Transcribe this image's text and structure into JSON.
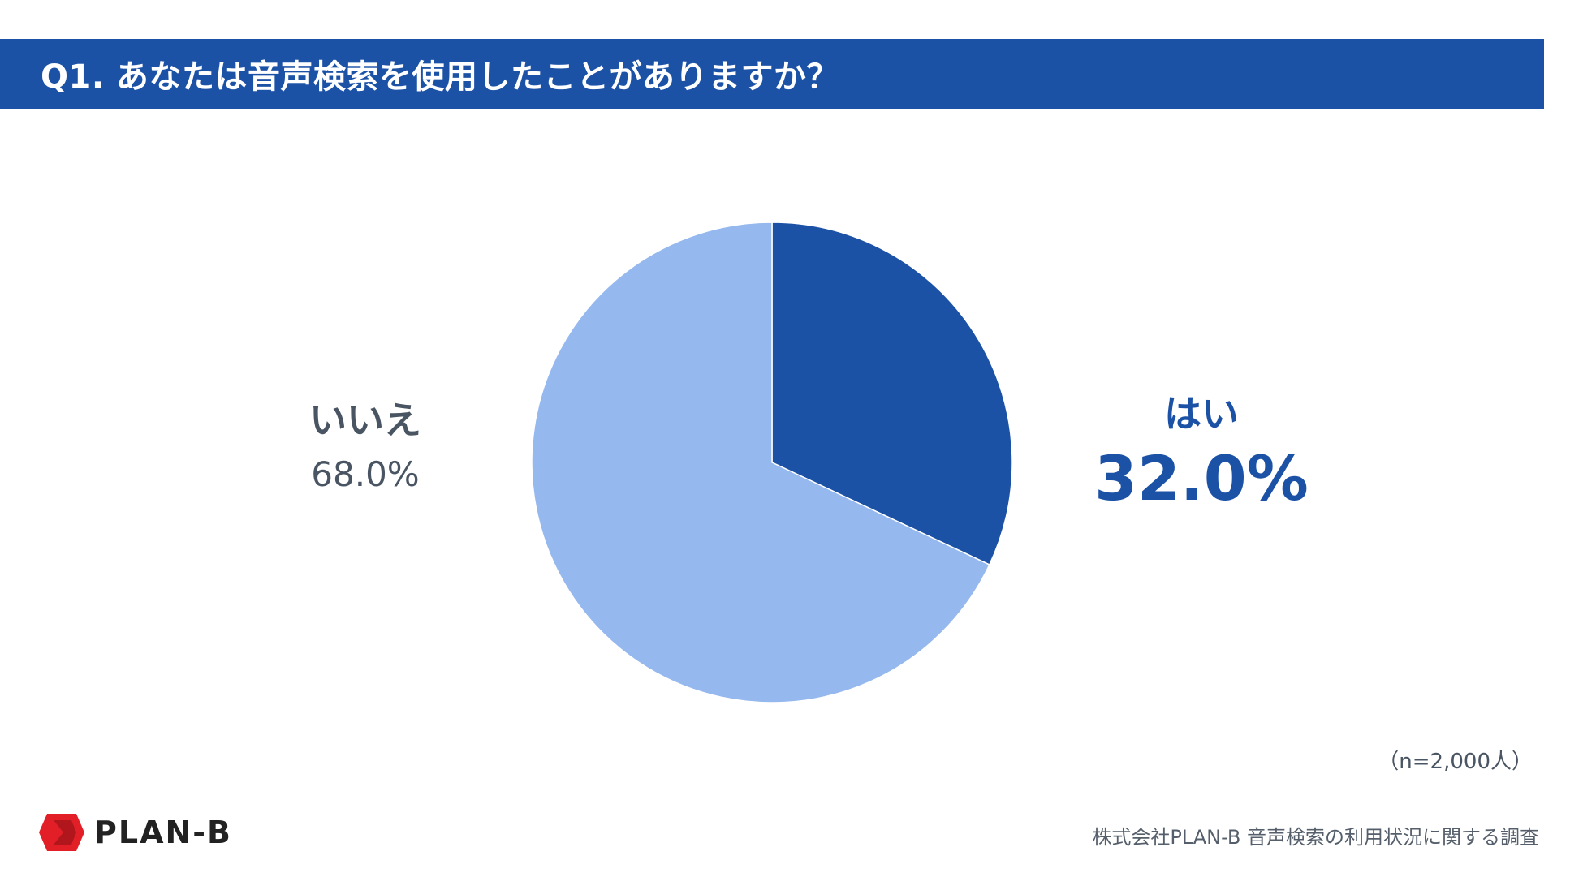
{
  "header": {
    "title": "Q1. あなたは音声検索を使用したことがありますか？"
  },
  "chart_data": {
    "type": "pie",
    "title": "",
    "categories": [
      "はい",
      "いいえ"
    ],
    "values": [
      32.0,
      68.0
    ],
    "labels": [
      "32.0%",
      "68.0%"
    ],
    "colors": [
      "#1c52a6",
      "#95b8ee"
    ],
    "start": "12 o'clock, clockwise",
    "legend": "none"
  },
  "labels": {
    "yes": {
      "name": "はい",
      "pct": "32.0%"
    },
    "no": {
      "name": "いいえ",
      "pct": "68.0%"
    }
  },
  "sample_size": "（n=2,000人）",
  "footer": {
    "logo_text": "PLAN-B",
    "logo_icon": "plan-b-logo-icon",
    "brand_color": "#e21f26",
    "source": "株式会社PLAN-B 音声検索の利用状況に関する調査"
  }
}
